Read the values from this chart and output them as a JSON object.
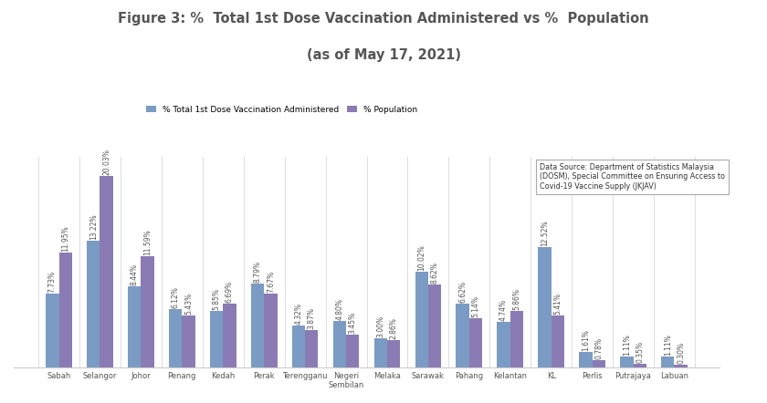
{
  "title_line1": "Figure 3: %  Total 1st Dose Vaccination Administered vs %  Population",
  "title_line2": "(as of May 17, 2021)",
  "categories": [
    "Sabah",
    "Selangor",
    "Johor",
    "Penang",
    "Kedah",
    "Perak",
    "Terengganu",
    "Negeri\nSembilan",
    "Melaka",
    "Sarawak",
    "Pahang",
    "Kelantan",
    "KL",
    "Perlis",
    "Putrajaya",
    "Labuan"
  ],
  "vaccination": [
    7.73,
    13.22,
    8.44,
    6.12,
    5.85,
    8.79,
    4.32,
    4.8,
    3.0,
    10.02,
    6.62,
    4.74,
    12.52,
    1.61,
    1.11,
    1.11
  ],
  "population": [
    11.95,
    20.03,
    11.59,
    5.43,
    6.69,
    7.67,
    3.87,
    3.45,
    2.86,
    8.62,
    5.14,
    5.86,
    5.41,
    0.78,
    0.35,
    0.3
  ],
  "vacc_labels": [
    "7.73%",
    "13.22%",
    "8.44%",
    "6.12%",
    "5.85%",
    "8.79%",
    "4.32%",
    "4.80%",
    "3.00%",
    "10.02%",
    "6.62%",
    "4.74%",
    "12.52%",
    "1.61%",
    "1.11%",
    "1.11%"
  ],
  "pop_labels": [
    "11.95%",
    "20.03%",
    "11.59%",
    "5.43%",
    "6.69%",
    "7.67%",
    "3.87%",
    "3.45%",
    "2.86%",
    "8.62%",
    "5.14%",
    "5.86%",
    "5.41%",
    "0.78%",
    "0.35%",
    "0.30%"
  ],
  "vacc_color": "#7a9cc4",
  "pop_color": "#8b7bb5",
  "background_color": "#ffffff",
  "plot_bg_color": "#ffffff",
  "legend_label_vacc": "% Total 1st Dose Vaccination Administered",
  "legend_label_pop": "% Population",
  "annotation_text": "Data Source: Department of Statistics Malaysia\n(DOSM), Special Committee on Ensuring Access to\nCovid-19 Vaccine Supply (JKJAV)",
  "ylim": [
    0,
    22
  ],
  "bar_width": 0.32,
  "title_fontsize": 10.5,
  "label_fontsize": 5.5,
  "tick_fontsize": 6.0
}
